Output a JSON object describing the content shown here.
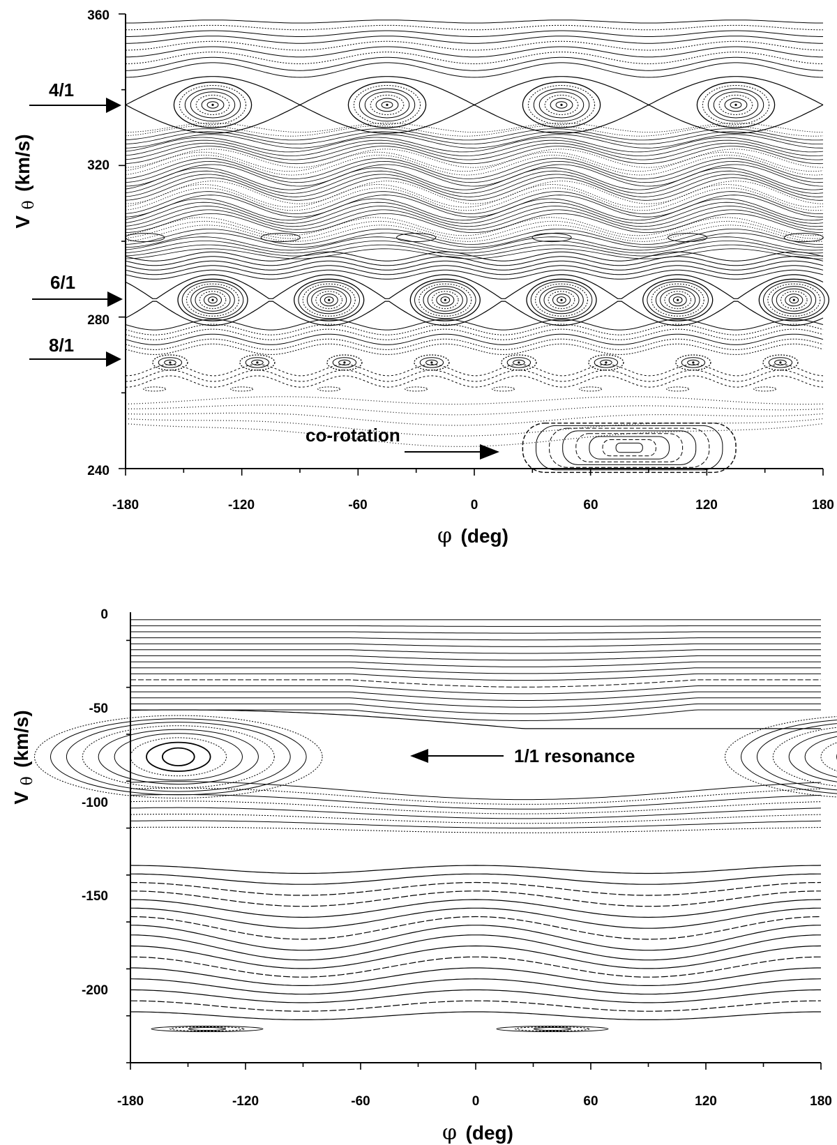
{
  "chart_data": [
    {
      "type": "scatter",
      "plot": "phase-space surface of section (upper panel)",
      "xlabel_symbol": "φ",
      "xlabel_unit": "(deg)",
      "ylabel_v": "V",
      "ylabel_sub": "θ",
      "ylabel_unit": "(km/s)",
      "xlim": [
        -180,
        180
      ],
      "ylim": [
        240,
        360
      ],
      "x_ticks": [
        -180,
        -120,
        -60,
        0,
        60,
        120,
        180
      ],
      "y_ticks": [
        240,
        280,
        320,
        360
      ],
      "grid": false,
      "line_color": "#000000",
      "annotations": [
        {
          "text": "4/1",
          "y": 336,
          "kind": "left-arrow"
        },
        {
          "text": "6/1",
          "y": 285,
          "kind": "left-arrow"
        },
        {
          "text": "8/1",
          "y": 269,
          "kind": "left-arrow"
        },
        {
          "text": "co-rotation",
          "x": 12,
          "y": 245,
          "kind": "pointer"
        }
      ],
      "resonances": [
        {
          "name": "4/1",
          "v_center": 336,
          "phi_centers": [
            -135,
            -45,
            45,
            135
          ],
          "half_width_deg": 20,
          "half_height": 6
        },
        {
          "name": "6/1",
          "v_center": 284.5,
          "phi_centers": [
            -135,
            -75,
            -15,
            45,
            105,
            165
          ],
          "half_width_deg": 18,
          "half_height": 5.5
        },
        {
          "name": "8/1",
          "v_center": 268,
          "phi_centers": [
            -157,
            -112,
            -67,
            -22,
            23,
            68,
            113,
            158
          ],
          "half_width_deg": 9,
          "half_height": 2
        },
        {
          "name": "co-rotation",
          "v_center": 245.5,
          "phi_centers": [
            80
          ],
          "half_width_deg": 55,
          "half_height": 6.5
        }
      ]
    },
    {
      "type": "scatter",
      "plot": "phase-space surface of section (lower panel)",
      "xlabel_symbol": "φ",
      "xlabel_unit": "(deg)",
      "ylabel_v": "V",
      "ylabel_sub": "θ",
      "ylabel_unit": "(km/s)",
      "xlim": [
        -180,
        180
      ],
      "ylim": [
        -240,
        0
      ],
      "x_ticks": [
        -180,
        -120,
        -60,
        0,
        60,
        120,
        180
      ],
      "y_ticks": [
        -200,
        -150,
        -100,
        -50,
        0
      ],
      "grid": false,
      "line_color": "#000000",
      "annotations": [
        {
          "text": "1/1 resonance",
          "x": -33,
          "y": -77,
          "kind": "arrow-left"
        }
      ],
      "resonances": [
        {
          "name": "1/1",
          "v_center": -77,
          "phi_centers": [
            -155,
            205
          ],
          "half_width_deg": 75,
          "half_height": 22
        }
      ]
    }
  ]
}
